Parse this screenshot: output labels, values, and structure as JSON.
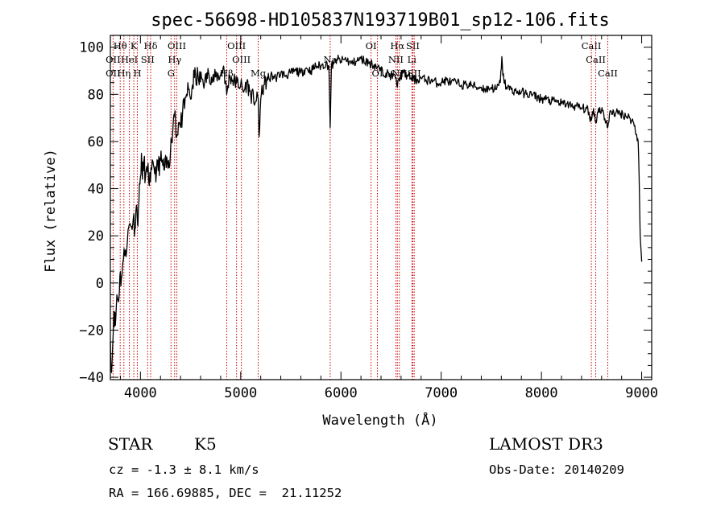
{
  "chart_data": {
    "type": "line",
    "title": "spec-56698-HD105837N193719B01_sp12-106.fits",
    "xlabel": "Wavelength (Å)",
    "ylabel": "Flux (relative)",
    "xlim": [
      3700,
      9100
    ],
    "ylim": [
      -41,
      105
    ],
    "x_ticks": [
      4000,
      5000,
      6000,
      7000,
      8000,
      9000
    ],
    "y_ticks": [
      -40,
      -20,
      0,
      20,
      40,
      60,
      80,
      100
    ],
    "grid": false,
    "series": [
      {
        "points": [
          [
            3700,
            -25
          ],
          [
            3712,
            -38
          ],
          [
            3722,
            -28
          ],
          [
            3735,
            -12
          ],
          [
            3750,
            -18
          ],
          [
            3765,
            -5
          ],
          [
            3780,
            -8
          ],
          [
            3795,
            3
          ],
          [
            3810,
            2
          ],
          [
            3830,
            10
          ],
          [
            3850,
            14
          ],
          [
            3870,
            18
          ],
          [
            3890,
            25
          ],
          [
            3910,
            24
          ],
          [
            3930,
            28
          ],
          [
            3945,
            23
          ],
          [
            3960,
            33
          ],
          [
            3970,
            26
          ],
          [
            3985,
            35
          ],
          [
            4000,
            45
          ],
          [
            4010,
            55
          ],
          [
            4020,
            44
          ],
          [
            4035,
            52
          ],
          [
            4050,
            45
          ],
          [
            4070,
            47
          ],
          [
            4100,
            43
          ],
          [
            4130,
            50
          ],
          [
            4160,
            47
          ],
          [
            4200,
            52
          ],
          [
            4240,
            48
          ],
          [
            4280,
            52
          ],
          [
            4300,
            56
          ],
          [
            4310,
            60
          ],
          [
            4330,
            70
          ],
          [
            4345,
            73
          ],
          [
            4360,
            62
          ],
          [
            4380,
            68
          ],
          [
            4400,
            66
          ],
          [
            4420,
            72
          ],
          [
            4440,
            74
          ],
          [
            4460,
            80
          ],
          [
            4480,
            82
          ],
          [
            4500,
            78
          ],
          [
            4520,
            84
          ],
          [
            4550,
            88
          ],
          [
            4580,
            86
          ],
          [
            4610,
            87
          ],
          [
            4640,
            85
          ],
          [
            4680,
            89
          ],
          [
            4720,
            86
          ],
          [
            4760,
            88
          ],
          [
            4800,
            88
          ],
          [
            4830,
            92
          ],
          [
            4860,
            80
          ],
          [
            4890,
            88
          ],
          [
            4920,
            86
          ],
          [
            4960,
            85
          ],
          [
            5000,
            84
          ],
          [
            5030,
            81
          ],
          [
            5060,
            85
          ],
          [
            5100,
            80
          ],
          [
            5150,
            77
          ],
          [
            5175,
            78
          ],
          [
            5183,
            62
          ],
          [
            5200,
            78
          ],
          [
            5230,
            84
          ],
          [
            5270,
            86
          ],
          [
            5300,
            88
          ],
          [
            5350,
            87
          ],
          [
            5400,
            89
          ],
          [
            5450,
            88
          ],
          [
            5500,
            89
          ],
          [
            5550,
            90
          ],
          [
            5600,
            89
          ],
          [
            5650,
            91
          ],
          [
            5700,
            90
          ],
          [
            5750,
            92
          ],
          [
            5800,
            92
          ],
          [
            5850,
            93
          ],
          [
            5880,
            92
          ],
          [
            5893,
            66
          ],
          [
            5905,
            92
          ],
          [
            5930,
            93
          ],
          [
            5960,
            95
          ],
          [
            6000,
            94
          ],
          [
            6050,
            95
          ],
          [
            6100,
            93
          ],
          [
            6150,
            94
          ],
          [
            6200,
            95
          ],
          [
            6250,
            94
          ],
          [
            6300,
            93
          ],
          [
            6350,
            92
          ],
          [
            6400,
            90
          ],
          [
            6450,
            89
          ],
          [
            6500,
            88
          ],
          [
            6550,
            87
          ],
          [
            6563,
            83
          ],
          [
            6580,
            87
          ],
          [
            6620,
            89
          ],
          [
            6660,
            88
          ],
          [
            6700,
            87
          ],
          [
            6750,
            86
          ],
          [
            6800,
            87
          ],
          [
            6850,
            86
          ],
          [
            6900,
            86
          ],
          [
            6950,
            85
          ],
          [
            7000,
            85
          ],
          [
            7050,
            86
          ],
          [
            7100,
            85
          ],
          [
            7150,
            85
          ],
          [
            7200,
            84
          ],
          [
            7250,
            84
          ],
          [
            7300,
            84
          ],
          [
            7350,
            83
          ],
          [
            7400,
            83
          ],
          [
            7450,
            82
          ],
          [
            7500,
            83
          ],
          [
            7550,
            82
          ],
          [
            7590,
            85
          ],
          [
            7605,
            96
          ],
          [
            7615,
            88
          ],
          [
            7650,
            83
          ],
          [
            7700,
            82
          ],
          [
            7750,
            81
          ],
          [
            7800,
            81
          ],
          [
            7850,
            80
          ],
          [
            7900,
            80
          ],
          [
            7950,
            79
          ],
          [
            8000,
            78
          ],
          [
            8050,
            78
          ],
          [
            8100,
            77
          ],
          [
            8150,
            77
          ],
          [
            8200,
            76
          ],
          [
            8250,
            76
          ],
          [
            8300,
            75
          ],
          [
            8350,
            75
          ],
          [
            8400,
            74
          ],
          [
            8450,
            74
          ],
          [
            8498,
            69
          ],
          [
            8520,
            74
          ],
          [
            8542,
            68
          ],
          [
            8570,
            74
          ],
          [
            8610,
            73
          ],
          [
            8662,
            66
          ],
          [
            8690,
            73
          ],
          [
            8740,
            72
          ],
          [
            8790,
            72
          ],
          [
            8840,
            71
          ],
          [
            8880,
            70
          ],
          [
            8920,
            68
          ],
          [
            8950,
            63
          ],
          [
            8965,
            60
          ],
          [
            8975,
            45
          ],
          [
            8985,
            20
          ],
          [
            9000,
            9
          ]
        ]
      }
    ],
    "spectral_lines": [
      {
        "label": "Hθ",
        "wavelength": 3798,
        "row": 1
      },
      {
        "label": "OII",
        "wavelength": 3727,
        "row": 2
      },
      {
        "label": "OII",
        "wavelength": 3727,
        "row": 3
      },
      {
        "label": "K",
        "wavelength": 3934,
        "row": 1
      },
      {
        "label": "HeI",
        "wavelength": 3889,
        "row": 2
      },
      {
        "label": "Hη",
        "wavelength": 3835,
        "row": 3
      },
      {
        "label": "Hδ",
        "wavelength": 4102,
        "row": 1
      },
      {
        "label": "SII",
        "wavelength": 4072,
        "row": 2
      },
      {
        "label": "H",
        "wavelength": 3969,
        "row": 3
      },
      {
        "label": "OIII",
        "wavelength": 4363,
        "row": 1
      },
      {
        "label": "Hγ",
        "wavelength": 4341,
        "row": 2
      },
      {
        "label": "G",
        "wavelength": 4305,
        "row": 3
      },
      {
        "label": "OIII",
        "wavelength": 4959,
        "row": 1
      },
      {
        "label": "OIII",
        "wavelength": 5007,
        "row": 2
      },
      {
        "label": "Hβ",
        "wavelength": 4861,
        "row": 3
      },
      {
        "label": "Mg",
        "wavelength": 5175,
        "row": 3
      },
      {
        "label": "Na",
        "wavelength": 5893,
        "row": 2
      },
      {
        "label": "OI",
        "wavelength": 6300,
        "row": 1
      },
      {
        "label": "OI",
        "wavelength": 6364,
        "row": 3
      },
      {
        "label": "Hα",
        "wavelength": 6563,
        "row": 1
      },
      {
        "label": "SII",
        "wavelength": 6717,
        "row": 1
      },
      {
        "label": "NII",
        "wavelength": 6548,
        "row": 2
      },
      {
        "label": "Li",
        "wavelength": 6708,
        "row": 2
      },
      {
        "label": "NII",
        "wavelength": 6583,
        "row": 3
      },
      {
        "label": "SII",
        "wavelength": 6731,
        "row": 3
      },
      {
        "label": "CaII",
        "wavelength": 8498,
        "row": 1
      },
      {
        "label": "CaII",
        "wavelength": 8542,
        "row": 2
      },
      {
        "label": "CaII",
        "wavelength": 8662,
        "row": 3
      }
    ],
    "colors": {
      "spectrum": "#000000",
      "line_markers": "#cc0000"
    }
  },
  "info": {
    "object_class": "STAR",
    "subclass": "K5",
    "survey": "LAMOST DR3",
    "redshift": "cz = -1.3 ± 8.1 km/s",
    "obs_date": "Obs-Date: 20140209",
    "coords": "RA = 166.69885, DEC =  21.11252"
  }
}
